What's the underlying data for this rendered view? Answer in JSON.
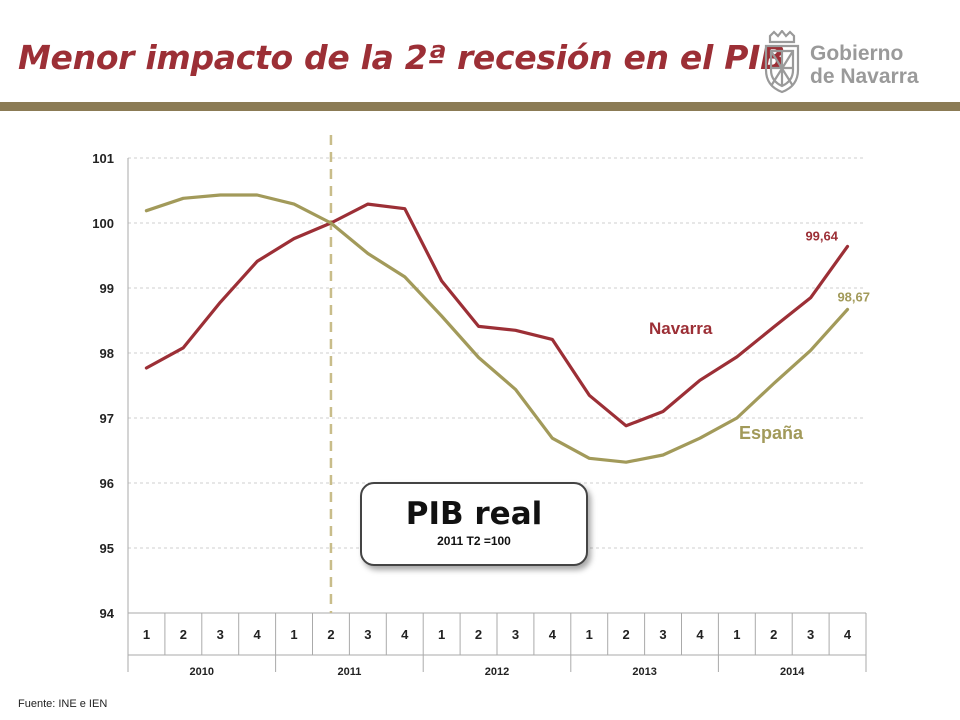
{
  "header": {
    "title": "Menor impacto de la 2ª recesión en el PIB",
    "logo": {
      "line1": "Gobierno",
      "line2": "de Navarra",
      "icon": "navarra-coat-of-arms-icon"
    }
  },
  "callout": {
    "title": "PIB real",
    "subtitle": "2011 T2 =100"
  },
  "source": "Fuente: INE e IEN",
  "colors": {
    "title": "#9c2f36",
    "rule": "#8b7b55",
    "navarra": "#9c2f36",
    "espana": "#a29a5a",
    "divider": "#c9bd8a"
  },
  "chart_data": {
    "type": "line",
    "title": "",
    "xlabel": "",
    "ylabel": "",
    "ylim": [
      94,
      101
    ],
    "yticks": [
      "94",
      "95",
      "96",
      "97",
      "98",
      "99",
      "100",
      "101"
    ],
    "grid": "horizontal dashed",
    "categories": [
      "1",
      "2",
      "3",
      "4",
      "1",
      "2",
      "3",
      "4",
      "1",
      "2",
      "3",
      "4",
      "1",
      "2",
      "3",
      "4",
      "1",
      "2",
      "3",
      "4"
    ],
    "years": [
      "2010",
      "2011",
      "2012",
      "2013",
      "2014"
    ],
    "reference_line": {
      "category_index": 5,
      "label": ""
    },
    "series": [
      {
        "name": "Navarra",
        "color": "#9c2f36",
        "values": [
          97.77,
          98.08,
          98.78,
          99.41,
          99.76,
          100.0,
          100.29,
          100.22,
          99.11,
          98.41,
          98.35,
          98.21,
          97.35,
          96.88,
          97.1,
          97.58,
          97.94,
          98.4,
          98.85,
          99.64
        ],
        "end_label": "99,64"
      },
      {
        "name": "España",
        "color": "#a29a5a",
        "values": [
          100.19,
          100.38,
          100.43,
          100.43,
          100.29,
          100.0,
          99.53,
          99.17,
          98.57,
          97.93,
          97.44,
          96.69,
          96.38,
          96.32,
          96.43,
          96.69,
          97.0,
          97.53,
          98.04,
          98.67
        ],
        "end_label": "98,67"
      }
    ]
  }
}
